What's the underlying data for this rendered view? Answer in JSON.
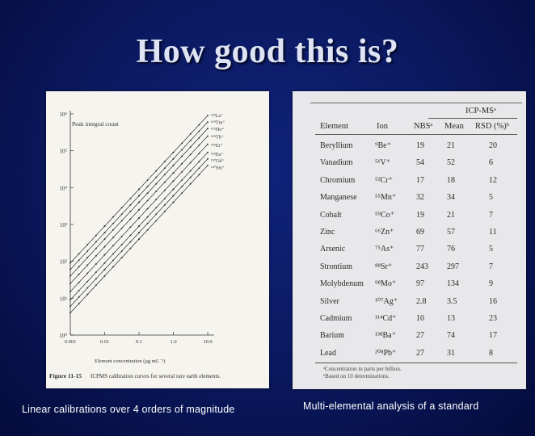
{
  "slide": {
    "title": "How good this is?",
    "left_caption": "Linear calibrations over 4 orders of magnitude",
    "right_caption": "Multi-elemental analysis of a standard"
  },
  "figure": {
    "caption_number": "Figure 11-15",
    "caption_text": "ICPMS calibration curves for several rare earth elements.",
    "legend_label": "Peak integral count",
    "x_axis_label": "Element concentration (μg mL⁻¹)",
    "y_tick_labels": [
      "10⁶",
      "10⁵",
      "10⁴",
      "10³",
      "10²",
      "10¹",
      "10⁰"
    ],
    "x_tick_labels": [
      "0.001",
      "0.01",
      "0.1",
      "1.0",
      "10.0"
    ],
    "series_labels": [
      "¹³⁹La⁺",
      "¹⁶⁹Tm⁺",
      "¹⁶⁵Ho⁺",
      "¹⁵⁹Tb⁺",
      "¹⁶⁶Er⁺",
      "¹⁵³Eu⁺",
      "¹⁵⁷Gd⁺",
      "¹⁴⁷Sm⁺"
    ]
  },
  "chart_data": {
    "type": "line",
    "title": "ICPMS calibration curves for several rare earth elements.",
    "xlabel": "Element concentration (μg mL⁻¹)",
    "ylabel": "Peak integral count",
    "x_scale": "log",
    "y_scale": "log",
    "xlim": [
      0.001,
      10.0
    ],
    "ylim": [
      1,
      1000000
    ],
    "x": [
      0.001,
      0.01,
      0.1,
      1.0,
      10.0
    ],
    "series": [
      {
        "name": "¹³⁹La⁺",
        "values": [
          90,
          900,
          9000,
          90000,
          900000
        ]
      },
      {
        "name": "¹⁶⁹Tm⁺",
        "values": [
          60,
          600,
          6000,
          60000,
          600000
        ]
      },
      {
        "name": "¹⁶⁵Ho⁺",
        "values": [
          40,
          400,
          4000,
          40000,
          400000
        ]
      },
      {
        "name": "¹⁵⁹Tb⁺",
        "values": [
          25,
          250,
          2500,
          25000,
          250000
        ]
      },
      {
        "name": "¹⁶⁶Er⁺",
        "values": [
          15,
          150,
          1500,
          15000,
          150000
        ]
      },
      {
        "name": "¹⁵³Eu⁺",
        "values": [
          9,
          90,
          900,
          9000,
          90000
        ]
      },
      {
        "name": "¹⁵⁷Gd⁺",
        "values": [
          6,
          60,
          600,
          6000,
          60000
        ]
      },
      {
        "name": "¹⁴⁷Sm⁺",
        "values": [
          4,
          40,
          400,
          4000,
          40000
        ]
      }
    ]
  },
  "table": {
    "group_header": "ICP-MSᵃ",
    "headers": [
      "Element",
      "Ion",
      "NBSᵃ",
      "Mean",
      "RSD (%)ᵇ"
    ],
    "rows": [
      [
        "Beryllium",
        "⁹Be⁺",
        "19",
        "21",
        "20"
      ],
      [
        "Vanadium",
        "⁵¹V⁺",
        "54",
        "52",
        "6"
      ],
      [
        "Chromium",
        "⁵²Cr⁺",
        "17",
        "18",
        "12"
      ],
      [
        "Manganese",
        "⁵⁵Mn⁺",
        "32",
        "34",
        "5"
      ],
      [
        "Cobalt",
        "⁵⁹Co⁺",
        "19",
        "21",
        "7"
      ],
      [
        "Zinc",
        "⁶⁶Zn⁺",
        "69",
        "57",
        "11"
      ],
      [
        "Arsenic",
        "⁷⁵As⁺",
        "77",
        "76",
        "5"
      ],
      [
        "Strontium",
        "⁸⁸Sr⁺",
        "243",
        "297",
        "7"
      ],
      [
        "Molybdenum",
        "⁹⁸Mo⁺",
        "97",
        "134",
        "9"
      ],
      [
        "Silver",
        "¹⁰⁷Ag⁺",
        "2.8",
        "3.5",
        "16"
      ],
      [
        "Cadmium",
        "¹¹⁴Cd⁺",
        "10",
        "13",
        "23"
      ],
      [
        "Barium",
        "¹³⁸Ba⁺",
        "27",
        "74",
        "17"
      ],
      [
        "Lead",
        "²⁰⁸Pb⁺",
        "27",
        "31",
        "8"
      ]
    ],
    "footnotes": [
      "ᵃConcentration in parts per billion.",
      "ᵇBased on 10 determinations."
    ]
  }
}
